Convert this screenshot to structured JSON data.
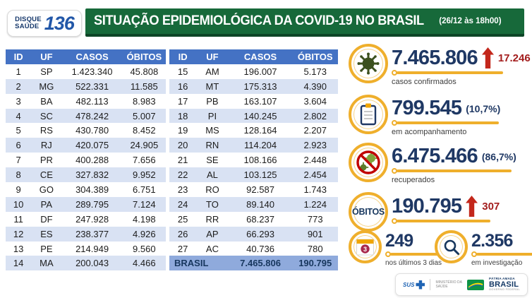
{
  "header": {
    "logo_line1": "DISQUE",
    "logo_line2": "SAÚDE",
    "logo_number": "136",
    "title": "SITUAÇÃO EPIDEMIOLÓGICA DA COVID-19 NO BRASIL",
    "subtitle": "(26/12 às 18h00)"
  },
  "chart_data": {
    "type": "table",
    "title": "Situação epidemiológica da COVID-19 no Brasil por UF (26/12 às 18h00)",
    "columns": [
      "ID",
      "UF",
      "CASOS",
      "ÓBITOS"
    ],
    "rows_left": [
      [
        "1",
        "SP",
        "1.423.340",
        "45.808"
      ],
      [
        "2",
        "MG",
        "522.331",
        "11.585"
      ],
      [
        "3",
        "BA",
        "482.113",
        "8.983"
      ],
      [
        "4",
        "SC",
        "478.242",
        "5.007"
      ],
      [
        "5",
        "RS",
        "430.780",
        "8.452"
      ],
      [
        "6",
        "RJ",
        "420.075",
        "24.905"
      ],
      [
        "7",
        "PR",
        "400.288",
        "7.656"
      ],
      [
        "8",
        "CE",
        "327.832",
        "9.952"
      ],
      [
        "9",
        "GO",
        "304.389",
        "6.751"
      ],
      [
        "10",
        "PA",
        "289.795",
        "7.124"
      ],
      [
        "11",
        "DF",
        "247.928",
        "4.198"
      ],
      [
        "12",
        "ES",
        "238.377",
        "4.926"
      ],
      [
        "13",
        "PE",
        "214.949",
        "9.560"
      ],
      [
        "14",
        "MA",
        "200.043",
        "4.466"
      ]
    ],
    "rows_right": [
      [
        "15",
        "AM",
        "196.007",
        "5.173"
      ],
      [
        "16",
        "MT",
        "175.313",
        "4.390"
      ],
      [
        "17",
        "PB",
        "163.107",
        "3.604"
      ],
      [
        "18",
        "PI",
        "140.245",
        "2.802"
      ],
      [
        "19",
        "MS",
        "128.164",
        "2.207"
      ],
      [
        "20",
        "RN",
        "114.204",
        "2.923"
      ],
      [
        "21",
        "SE",
        "108.166",
        "2.448"
      ],
      [
        "22",
        "AL",
        "103.125",
        "2.454"
      ],
      [
        "23",
        "RO",
        "92.587",
        "1.743"
      ],
      [
        "24",
        "TO",
        "89.140",
        "1.224"
      ],
      [
        "25",
        "RR",
        "68.237",
        "773"
      ],
      [
        "26",
        "AP",
        "66.293",
        "901"
      ],
      [
        "27",
        "AC",
        "40.736",
        "780"
      ]
    ],
    "total": [
      "BRASIL",
      "7.465.806",
      "190.795"
    ],
    "summary": {
      "casos_confirmados": 7465806,
      "casos_confirmados_delta": 17246,
      "em_acompanhamento": 799545,
      "em_acompanhamento_pct": "10,7%",
      "recuperados": 6475466,
      "recuperados_pct": "86,7%",
      "obitos": 190795,
      "obitos_delta": 307,
      "obitos_ultimos_3_dias": 249,
      "em_investigacao": 2356
    }
  },
  "stats": {
    "confirmed": {
      "value": "7.465.806",
      "delta": "17.246",
      "label": "casos confirmados",
      "icon": "virus-icon"
    },
    "monitoring": {
      "value": "799.545",
      "percent": "(10,7%)",
      "label": "em acompanhamento",
      "icon": "clipboard-icon"
    },
    "recovered": {
      "value": "6.475.466",
      "percent": "(86,7%)",
      "label": "recuperados",
      "icon": "no-virus-icon"
    },
    "deaths": {
      "badge": "ÓBITOS",
      "value": "190.795",
      "delta": "307"
    },
    "last_3_days": {
      "value": "249",
      "label": "nos últimos 3 dias",
      "icon": "calendar-3-icon"
    },
    "investigation": {
      "value": "2.356",
      "label": "em investigação",
      "icon": "magnifier-icon"
    }
  },
  "footer": {
    "sus": "SUS",
    "ministry": "MINISTÉRIO DA\nSAÚDE",
    "brand_top": "PÁTRIA AMADA",
    "brand_main": "BRASIL",
    "brand_sub": "GOVERNO FEDERAL"
  },
  "colors": {
    "banner_green": "#17693a",
    "table_header_blue": "#4472c4",
    "row_stripe_blue": "#d9e2f3",
    "total_row_blue": "#8faadc",
    "stat_navy": "#1f3864",
    "accent_gold": "#efaf2c",
    "alert_red": "#c3271b",
    "delta_dark_red": "#a31d1d"
  }
}
